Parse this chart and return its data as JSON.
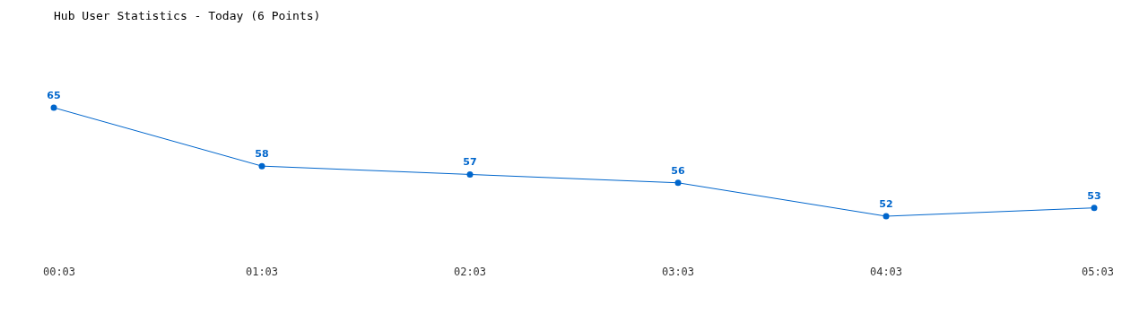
{
  "chart_data": {
    "type": "line",
    "title": "Hub User Statistics - Today (6 Points)",
    "categories": [
      "00:03",
      "01:03",
      "02:03",
      "03:03",
      "04:03",
      "05:03"
    ],
    "series": [
      {
        "color": "#0066cc",
        "values": [
          65,
          58,
          57,
          56,
          52,
          53
        ]
      }
    ],
    "data_labels": true,
    "marker": "circle"
  }
}
